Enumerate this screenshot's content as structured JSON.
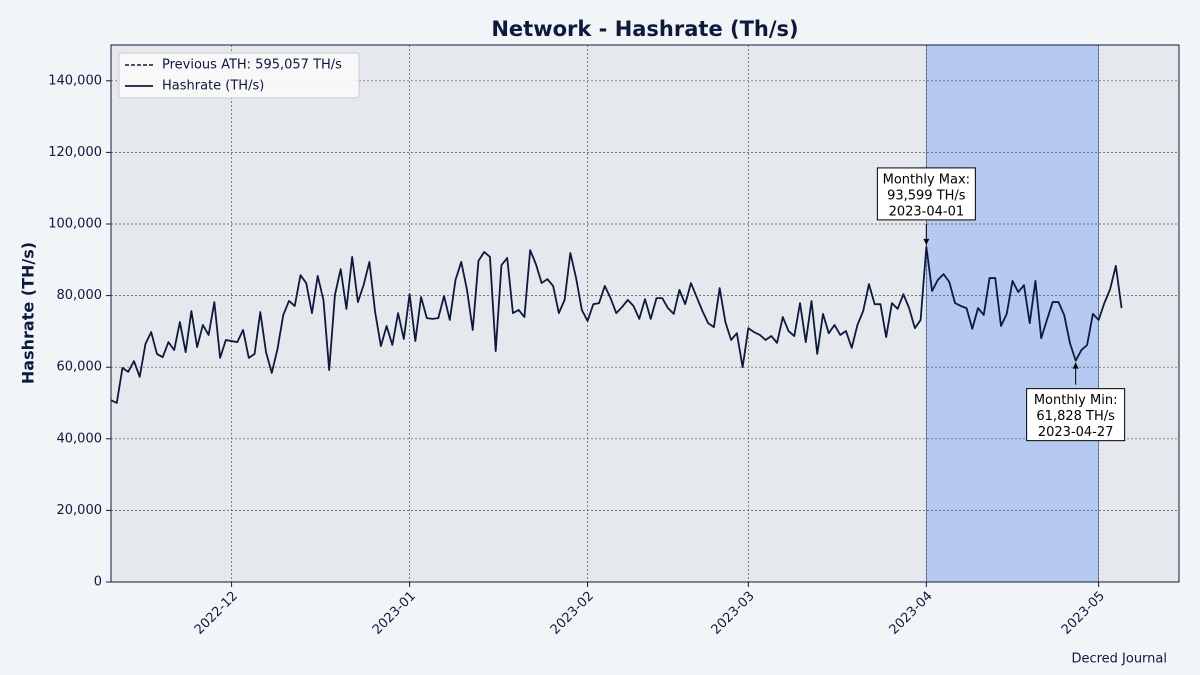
{
  "chart_data": {
    "type": "line",
    "title": "Network - Hashrate (Th/s)",
    "y_label": "Hashrate (TH/s)",
    "source": "Decred Journal",
    "x": [
      "2022-11-10",
      "2022-11-11",
      "2022-11-12",
      "2022-11-13",
      "2022-11-14",
      "2022-11-15",
      "2022-11-16",
      "2022-11-17",
      "2022-11-18",
      "2022-11-19",
      "2022-11-20",
      "2022-11-21",
      "2022-11-22",
      "2022-11-23",
      "2022-11-24",
      "2022-11-25",
      "2022-11-26",
      "2022-11-27",
      "2022-11-28",
      "2022-11-29",
      "2022-11-30",
      "2022-12-01",
      "2022-12-02",
      "2022-12-03",
      "2022-12-04",
      "2022-12-05",
      "2022-12-06",
      "2022-12-07",
      "2022-12-08",
      "2022-12-09",
      "2022-12-10",
      "2022-12-11",
      "2022-12-12",
      "2022-12-13",
      "2022-12-14",
      "2022-12-15",
      "2022-12-16",
      "2022-12-17",
      "2022-12-18",
      "2022-12-19",
      "2022-12-20",
      "2022-12-21",
      "2022-12-22",
      "2022-12-23",
      "2022-12-24",
      "2022-12-25",
      "2022-12-26",
      "2022-12-27",
      "2022-12-28",
      "2022-12-29",
      "2022-12-30",
      "2022-12-31",
      "2023-01-01",
      "2023-01-02",
      "2023-01-03",
      "2023-01-04",
      "2023-01-05",
      "2023-01-06",
      "2023-01-07",
      "2023-01-08",
      "2023-01-09",
      "2023-01-10",
      "2023-01-11",
      "2023-01-12",
      "2023-01-13",
      "2023-01-14",
      "2023-01-15",
      "2023-01-16",
      "2023-01-17",
      "2023-01-18",
      "2023-01-19",
      "2023-01-20",
      "2023-01-21",
      "2023-01-22",
      "2023-01-23",
      "2023-01-24",
      "2023-01-25",
      "2023-01-26",
      "2023-01-27",
      "2023-01-28",
      "2023-01-29",
      "2023-01-30",
      "2023-01-31",
      "2023-02-01",
      "2023-02-02",
      "2023-02-03",
      "2023-02-04",
      "2023-02-05",
      "2023-02-06",
      "2023-02-07",
      "2023-02-08",
      "2023-02-09",
      "2023-02-10",
      "2023-02-11",
      "2023-02-12",
      "2023-02-13",
      "2023-02-14",
      "2023-02-15",
      "2023-02-16",
      "2023-02-17",
      "2023-02-18",
      "2023-02-19",
      "2023-02-20",
      "2023-02-21",
      "2023-02-22",
      "2023-02-23",
      "2023-02-24",
      "2023-02-25",
      "2023-02-26",
      "2023-02-27",
      "2023-02-28",
      "2023-03-01",
      "2023-03-02",
      "2023-03-03",
      "2023-03-04",
      "2023-03-05",
      "2023-03-06",
      "2023-03-07",
      "2023-03-08",
      "2023-03-09",
      "2023-03-10",
      "2023-03-11",
      "2023-03-12",
      "2023-03-13",
      "2023-03-14",
      "2023-03-15",
      "2023-03-16",
      "2023-03-17",
      "2023-03-18",
      "2023-03-19",
      "2023-03-20",
      "2023-03-21",
      "2023-03-22",
      "2023-03-23",
      "2023-03-24",
      "2023-03-25",
      "2023-03-26",
      "2023-03-27",
      "2023-03-28",
      "2023-03-29",
      "2023-03-30",
      "2023-03-31",
      "2023-04-01",
      "2023-04-02",
      "2023-04-03",
      "2023-04-04",
      "2023-04-05",
      "2023-04-06",
      "2023-04-07",
      "2023-04-08",
      "2023-04-09",
      "2023-04-10",
      "2023-04-11",
      "2023-04-12",
      "2023-04-13",
      "2023-04-14",
      "2023-04-15",
      "2023-04-16",
      "2023-04-17",
      "2023-04-18",
      "2023-04-19",
      "2023-04-20",
      "2023-04-21",
      "2023-04-22",
      "2023-04-23",
      "2023-04-24",
      "2023-04-25",
      "2023-04-26",
      "2023-04-27",
      "2023-04-28",
      "2023-04-29",
      "2023-04-30",
      "2023-05-01",
      "2023-05-02",
      "2023-05-03",
      "2023-05-04",
      "2023-05-05"
    ],
    "series": [
      {
        "name": "Hashrate (TH/s)",
        "color": "#0d1a3d",
        "values": [
          50800,
          50000,
          59800,
          58700,
          61700,
          57300,
          66500,
          69800,
          63700,
          62800,
          67000,
          64800,
          72600,
          64200,
          75700,
          65600,
          71800,
          69000,
          78200,
          62600,
          67600,
          67300,
          67000,
          70400,
          62600,
          63700,
          75400,
          64200,
          58400,
          65100,
          74600,
          78500,
          77100,
          85700,
          83500,
          75100,
          85500,
          78800,
          59200,
          80200,
          87400,
          76300,
          90800,
          78200,
          83000,
          89400,
          75400,
          65900,
          71500,
          66200,
          75100,
          67900,
          80400,
          67300,
          79600,
          73700,
          73500,
          73700,
          79900,
          73200,
          84400,
          89400,
          81600,
          70400,
          89700,
          92200,
          90800,
          64500,
          88500,
          90500,
          75100,
          76000,
          74000,
          92700,
          88800,
          83500,
          84600,
          82700,
          75100,
          78800,
          91900,
          84900,
          76000,
          72900,
          77600,
          77900,
          82700,
          79300,
          75100,
          76800,
          78800,
          77100,
          73500,
          79000,
          73500,
          79300,
          79300,
          76500,
          74900,
          81600,
          77600,
          83500,
          79600,
          75700,
          72300,
          71200,
          82100,
          72600,
          67600,
          69500,
          60000,
          70900,
          69800,
          69000,
          67600,
          68700,
          66800,
          74000,
          70100,
          68700,
          77900,
          67000,
          78500,
          63700,
          74900,
          69500,
          71800,
          69000,
          70100,
          65400,
          71800,
          75700,
          83200,
          77600,
          77600,
          68400,
          77900,
          76300,
          80400,
          76500,
          70900,
          73200,
          93599,
          81300,
          84400,
          86000,
          83800,
          77900,
          77100,
          76500,
          70700,
          76500,
          74600,
          84900,
          84900,
          71500,
          74900,
          84100,
          81000,
          82900,
          72300,
          84100,
          68100,
          73200,
          78200,
          78200,
          74600,
          66800,
          61828,
          64800,
          66200,
          74900,
          73200,
          77900,
          81800,
          88300,
          76500
        ]
      }
    ],
    "reference_line": {
      "name": "Previous ATH: 595,057 TH/s",
      "value": 595057,
      "color": "#0d1a3d",
      "style": "dashed"
    },
    "highlight": {
      "start": "2023-04-01",
      "end": "2023-05-01",
      "color": "#b6c9f0"
    },
    "annotations": [
      {
        "lines": [
          "Monthly Max:",
          "93,599 TH/s",
          "2023-04-01"
        ],
        "x": "2023-04-01",
        "y": 93599,
        "position": "above"
      },
      {
        "lines": [
          "Monthly Min:",
          "61,828 TH/s",
          "2023-04-27"
        ],
        "x": "2023-04-27",
        "y": 61828,
        "position": "below"
      }
    ],
    "xlim": [
      "2022-11-10",
      "2023-05-15"
    ],
    "xticks": [
      {
        "value": "2022-12-01",
        "label": "2022-12"
      },
      {
        "value": "2023-01-01",
        "label": "2023-01"
      },
      {
        "value": "2023-02-01",
        "label": "2023-02"
      },
      {
        "value": "2023-03-01",
        "label": "2023-03"
      },
      {
        "value": "2023-04-01",
        "label": "2023-04"
      },
      {
        "value": "2023-05-01",
        "label": "2023-05"
      }
    ],
    "ylim": [
      0,
      150000
    ],
    "yticks": [
      0,
      {
        "value": 20000,
        "label": "20,000"
      },
      {
        "value": 40000,
        "label": "40,000"
      },
      {
        "value": 60000,
        "label": "60,000"
      },
      {
        "value": 80000,
        "label": "80,000"
      },
      {
        "value": 100000,
        "label": "100,000"
      },
      {
        "value": 120000,
        "label": "120,000"
      },
      {
        "value": 140000,
        "label": "140,000"
      }
    ],
    "grid": true,
    "legend": "upper left"
  }
}
